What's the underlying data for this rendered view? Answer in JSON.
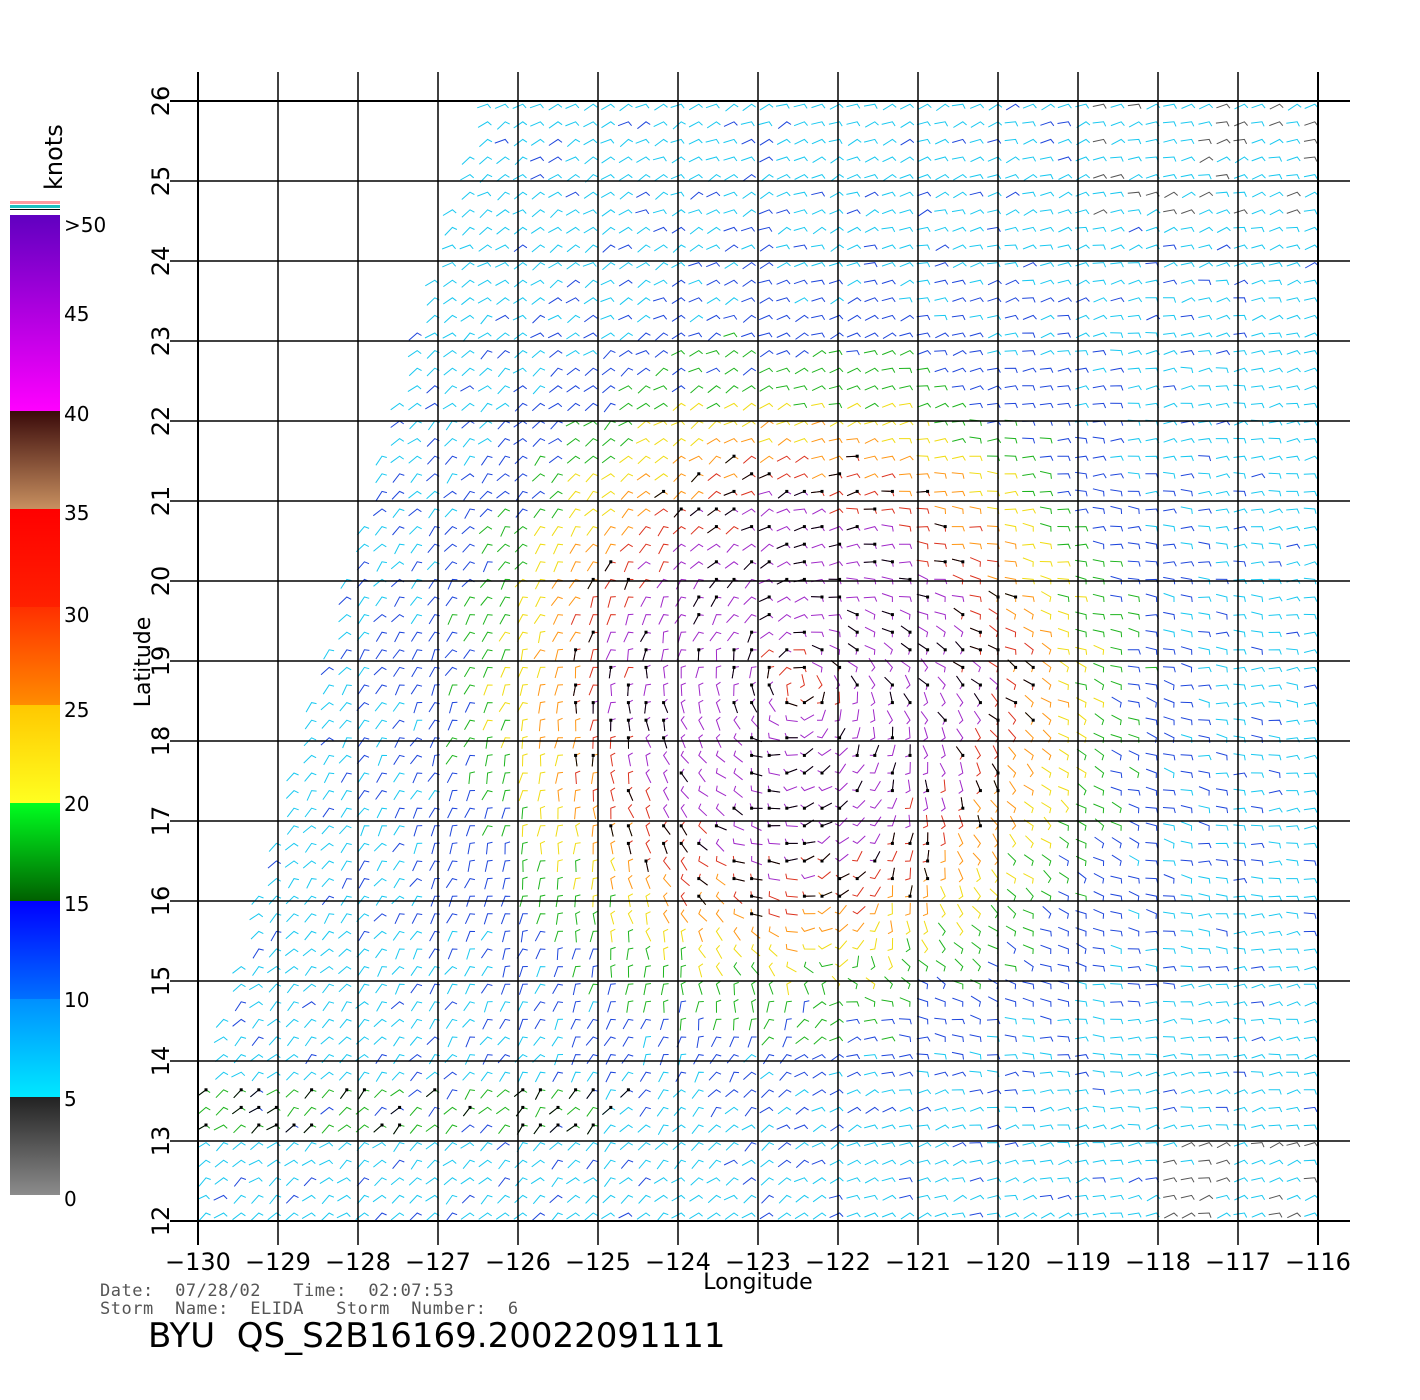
{
  "map": {
    "x_axis_label": "Longitude",
    "y_axis_label": "Latitude",
    "lon_ticks": [
      "−130",
      "−129",
      "−128",
      "−127",
      "−126",
      "−125",
      "−124",
      "−123",
      "−122",
      "−121",
      "−120",
      "−119",
      "−118",
      "−117",
      "−116"
    ],
    "lat_ticks": [
      "12",
      "13",
      "14",
      "15",
      "16",
      "17",
      "18",
      "19",
      "20",
      "21",
      "22",
      "23",
      "24",
      "25",
      "26"
    ],
    "lon_range": [
      -130,
      -116
    ],
    "lat_range": [
      12,
      26
    ],
    "storm_center_approx": {
      "lon": -122.5,
      "lat": 18.7
    },
    "content": "QuikSCAT wind vector field (colored by speed, knots)"
  },
  "colorbar": {
    "unit_label": "knots",
    "tick_labels": [
      ">50",
      "45",
      "40",
      "35",
      "30",
      "25",
      "20",
      "15",
      "10",
      "5",
      "0"
    ],
    "bands": [
      {
        "from": 0,
        "to": 5,
        "colors": [
          "#8c8c8c",
          "#222222"
        ]
      },
      {
        "from": 5,
        "to": 10,
        "colors": [
          "#00e8ff",
          "#0090ff"
        ]
      },
      {
        "from": 10,
        "to": 15,
        "colors": [
          "#0070ff",
          "#0000ff"
        ]
      },
      {
        "from": 15,
        "to": 20,
        "colors": [
          "#006000",
          "#00ff20"
        ]
      },
      {
        "from": 20,
        "to": 25,
        "colors": [
          "#ffff20",
          "#ffc800"
        ]
      },
      {
        "from": 25,
        "to": 30,
        "colors": [
          "#ff8c00",
          "#ff3000"
        ]
      },
      {
        "from": 30,
        "to": 35,
        "colors": [
          "#ff2000",
          "#ff0000"
        ]
      },
      {
        "from": 35,
        "to": 40,
        "colors": [
          "#c89060",
          "#3a0a0a"
        ]
      },
      {
        "from": 40,
        "to": 50,
        "colors": [
          "#ff00ff",
          "#6000c0"
        ]
      }
    ]
  },
  "footer": {
    "date_line": "Date:  07/28/02   Time:  02:07:53",
    "storm_line": "Storm  Name:  ELIDA   Storm  Number:  6",
    "title": "BYU  QS_S2B16169.20022091111"
  }
}
